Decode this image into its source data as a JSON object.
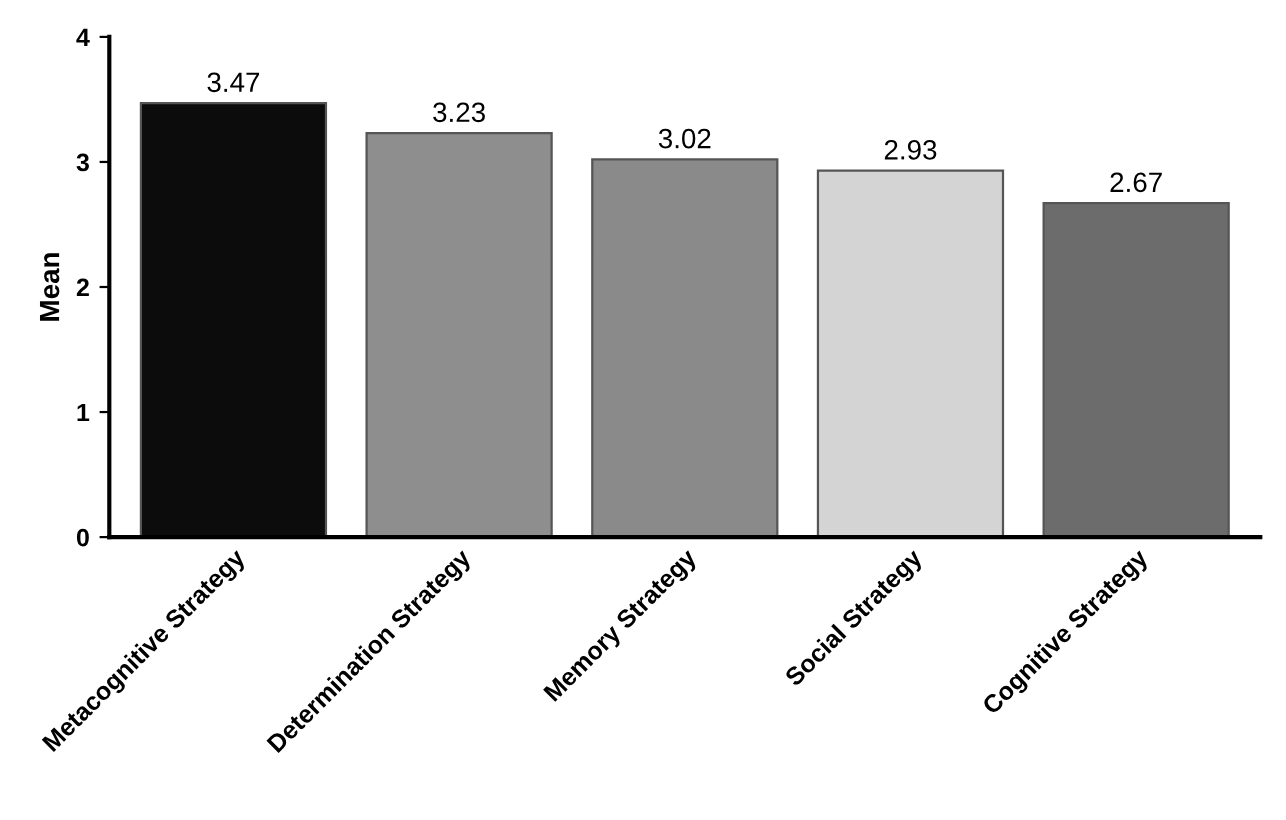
{
  "chart_data": {
    "type": "bar",
    "ylabel": "Mean",
    "categories": [
      "Metacognitive Strategy",
      "Determination Strategy",
      "Memory Strategy",
      "Social Strategy",
      "Cognitive Strategy"
    ],
    "values": [
      3.47,
      3.23,
      3.02,
      2.93,
      2.67
    ],
    "colors": [
      "#0c0c0c",
      "#8e8e8e",
      "#8a8a8a",
      "#d4d4d4",
      "#6c6c6c"
    ],
    "ylim": [
      0,
      4
    ],
    "yticks": [
      0,
      1,
      2,
      3,
      4
    ],
    "data_labels": true,
    "grid": false,
    "legend": false
  }
}
